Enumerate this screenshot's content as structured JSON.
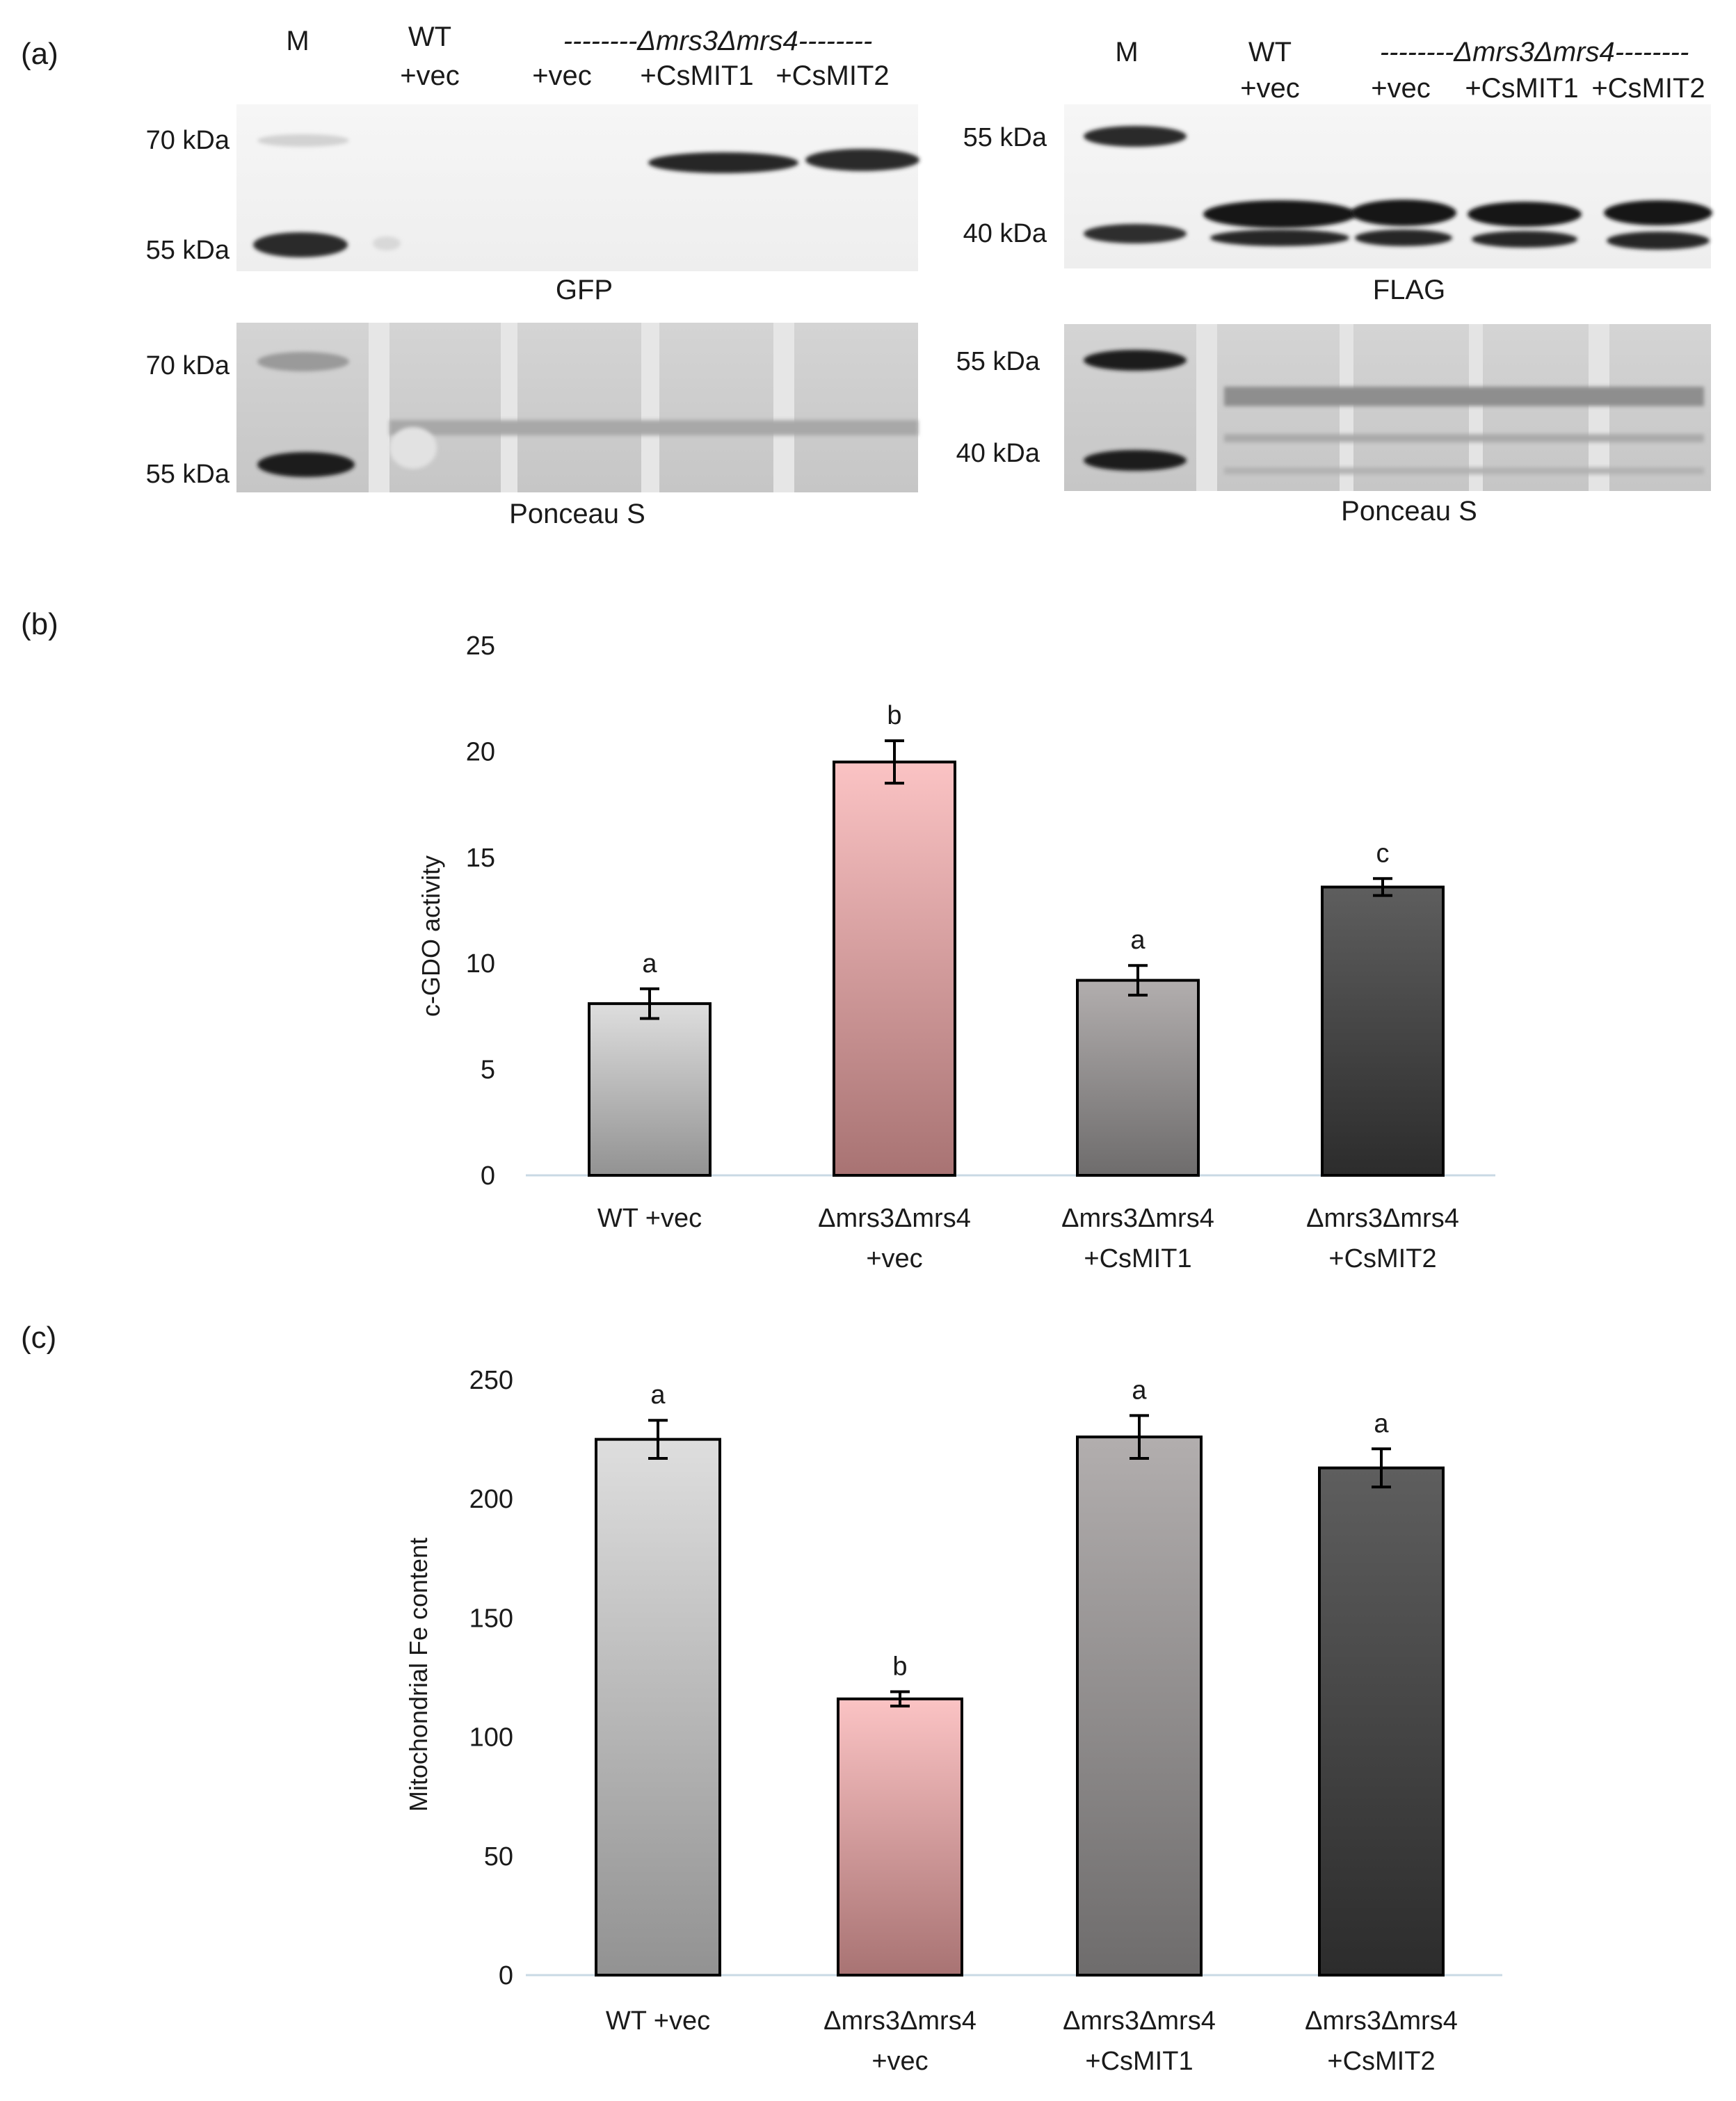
{
  "panels": {
    "a": "(a)",
    "b": "(b)",
    "c": "(c)"
  },
  "blots": {
    "left": {
      "marker": "M",
      "wt_line1": "WT",
      "wt_line2": "+vec",
      "strain_bracket": "--------Δmrs3Δmrs4--------",
      "lanes": [
        "+vec",
        "+CsMIT1",
        "+CsMIT2"
      ],
      "top_kda": [
        "70 kDa",
        "55 kDa"
      ],
      "top_caption": "GFP",
      "bottom_kda": [
        "70 kDa",
        "55 kDa"
      ],
      "bottom_caption": "Ponceau S"
    },
    "right": {
      "marker": "M",
      "wt_line1": "WT",
      "wt_line2": "+vec",
      "strain_bracket": "--------Δmrs3Δmrs4--------",
      "lanes": [
        "+vec",
        "+CsMIT1",
        "+CsMIT2"
      ],
      "top_kda": [
        "55 kDa",
        "40 kDa"
      ],
      "top_caption": "FLAG",
      "bottom_kda": [
        "55 kDa",
        "40 kDa"
      ],
      "bottom_caption": "Ponceau S"
    }
  },
  "chart_data": [
    {
      "type": "bar",
      "ylabel": "c-GDO activity",
      "ylim": [
        0,
        25
      ],
      "yticks": [
        0,
        5,
        10,
        15,
        20,
        25
      ],
      "categories": [
        [
          "WT +vec"
        ],
        [
          "Δmrs3Δmrs4",
          "+vec"
        ],
        [
          "Δmrs3Δmrs4",
          "+CsMIT1"
        ],
        [
          "Δmrs3Δmrs4",
          "+CsMIT2"
        ]
      ],
      "values": [
        8.1,
        19.5,
        9.2,
        13.6
      ],
      "errors": [
        0.7,
        1.0,
        0.7,
        0.4
      ],
      "significance": [
        "a",
        "b",
        "a",
        "c"
      ],
      "colors": [
        [
          "#dedede",
          "#929292"
        ],
        [
          "#fbc3c4",
          "#a87373"
        ],
        [
          "#b2aeae",
          "#6e6c6c"
        ],
        [
          "#5e5e5e",
          "#2c2c2c"
        ]
      ]
    },
    {
      "type": "bar",
      "ylabel": "Mitochondrial Fe content",
      "ylim": [
        0,
        250
      ],
      "yticks": [
        0,
        50,
        100,
        150,
        200,
        250
      ],
      "categories": [
        [
          "WT +vec"
        ],
        [
          "Δmrs3Δmrs4",
          "+vec"
        ],
        [
          "Δmrs3Δmrs4",
          "+CsMIT1"
        ],
        [
          "Δmrs3Δmrs4",
          "+CsMIT2"
        ]
      ],
      "values": [
        225,
        116,
        226,
        213
      ],
      "errors": [
        8,
        3,
        9,
        8
      ],
      "significance": [
        "a",
        "b",
        "a",
        "a"
      ],
      "colors": [
        [
          "#dedede",
          "#929292"
        ],
        [
          "#fbc3c4",
          "#a87373"
        ],
        [
          "#b2aeae",
          "#6e6c6c"
        ],
        [
          "#5e5e5e",
          "#2c2c2c"
        ]
      ]
    }
  ]
}
